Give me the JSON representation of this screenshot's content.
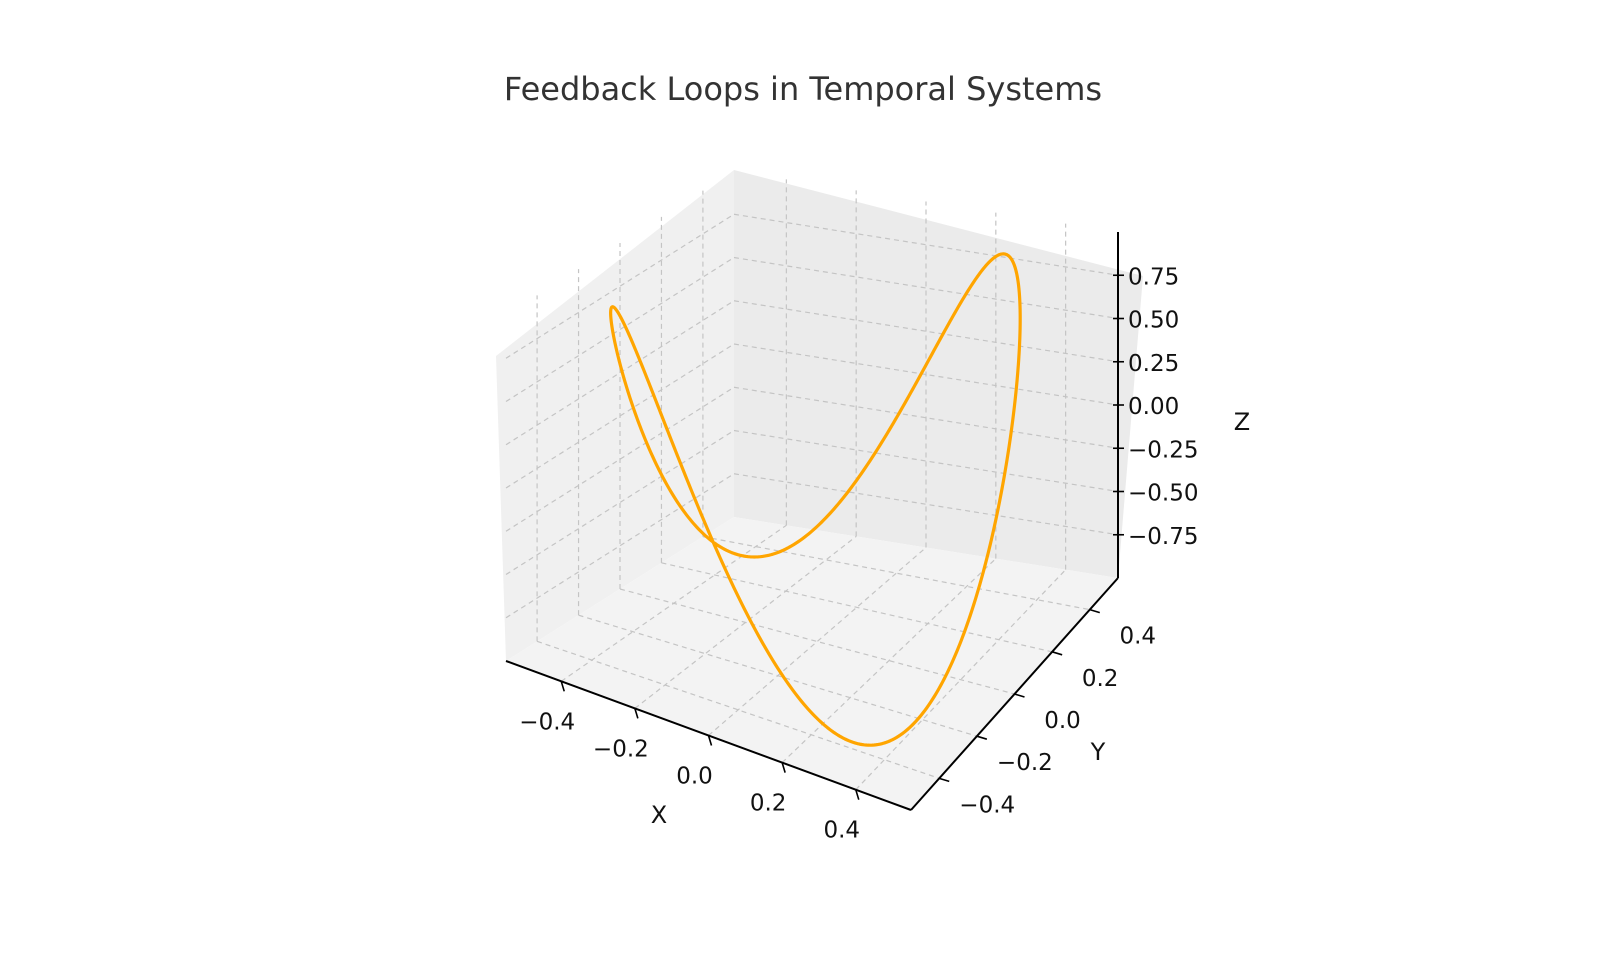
{
  "chart_data": {
    "type": "line",
    "projection": "3d",
    "title": "Feedback Loops in Temporal Systems",
    "xlabel": "X",
    "ylabel": "Y",
    "zlabel": "Z",
    "xlim": [
      -0.55,
      0.55
    ],
    "ylim": [
      -0.55,
      0.55
    ],
    "zlim": [
      -1.0,
      1.0
    ],
    "xticks": [
      -0.4,
      -0.2,
      0.0,
      0.2,
      0.4
    ],
    "yticks": [
      -0.4,
      -0.2,
      0.0,
      0.2,
      0.4
    ],
    "zticks": [
      -0.75,
      -0.5,
      -0.25,
      0.0,
      0.25,
      0.5,
      0.75
    ],
    "xtick_labels": [
      "−0.4",
      "−0.2",
      "0.0",
      "0.2",
      "0.4"
    ],
    "ytick_labels": [
      "−0.4",
      "−0.2",
      "0.0",
      "0.2",
      "0.4"
    ],
    "ztick_labels": [
      "−0.75",
      "−0.50",
      "−0.25",
      "0.00",
      "0.25",
      "0.50",
      "0.75"
    ],
    "grid": true,
    "series": [
      {
        "color": "#FFA500",
        "equations": {
          "x": "0.5*sin(t)",
          "y": "0.5*cos(t)",
          "z": "sin(2t)"
        },
        "t_range": [
          0,
          6.283185307
        ],
        "points": [
          [
            0.0,
            0.5,
            0.0
          ],
          [
            0.191,
            0.462,
            0.707
          ],
          [
            0.354,
            0.354,
            1.0
          ],
          [
            0.462,
            0.191,
            0.707
          ],
          [
            0.5,
            0.0,
            0.0
          ],
          [
            0.462,
            -0.191,
            -0.707
          ],
          [
            0.354,
            -0.354,
            -1.0
          ],
          [
            0.191,
            -0.462,
            -0.707
          ],
          [
            0.0,
            -0.5,
            0.0
          ],
          [
            -0.191,
            -0.462,
            0.707
          ],
          [
            -0.354,
            -0.354,
            1.0
          ],
          [
            -0.462,
            -0.191,
            0.707
          ],
          [
            -0.5,
            0.0,
            0.0
          ],
          [
            -0.462,
            0.191,
            -0.707
          ],
          [
            -0.354,
            0.354,
            -1.0
          ],
          [
            -0.191,
            0.462,
            -0.707
          ],
          [
            0.0,
            0.5,
            0.0
          ]
        ]
      }
    ]
  }
}
